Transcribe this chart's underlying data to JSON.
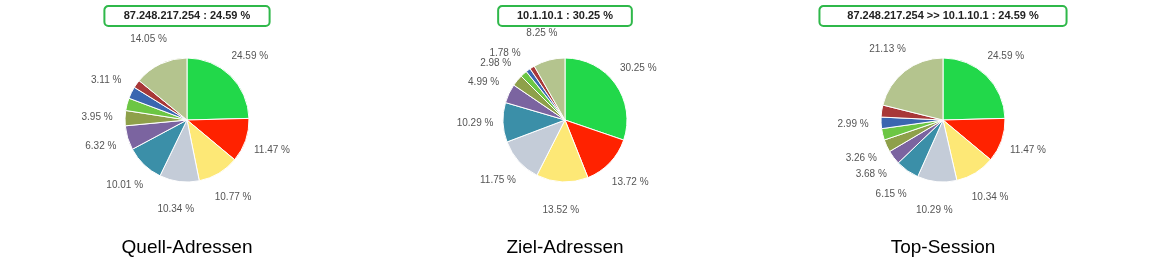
{
  "chart_data": [
    {
      "type": "pie",
      "title": "Quell-Adressen",
      "annotations": [
        "87.248.217.254 : 24.59 %"
      ],
      "legend": false,
      "categories": [
        null,
        null,
        null,
        null,
        null,
        null,
        null,
        null,
        null,
        null,
        null
      ],
      "values": [
        24.59,
        11.47,
        10.77,
        10.34,
        10.01,
        6.32,
        3.95,
        3.26,
        3.11,
        2.13,
        14.05
      ],
      "value_labels": [
        "24.59 %",
        "11.47 %",
        "10.77 %",
        "10.34 %",
        "10.01 %",
        "6.32 %",
        "3.95 %",
        null,
        "3.11 %",
        null,
        "14.05 %"
      ],
      "colors": [
        "#22d84a",
        "#ff2200",
        "#fde876",
        "#c4ccd8",
        "#3b8fa8",
        "#7b64a0",
        "#8ea04a",
        "#6cc644",
        "#3a66b0",
        "#a83838",
        "#b4c48e"
      ]
    },
    {
      "type": "pie",
      "title": "Ziel-Adressen",
      "annotations": [
        "10.1.10.1 : 30.25 %"
      ],
      "legend": false,
      "categories": [
        null,
        null,
        null,
        null,
        null,
        null,
        null,
        null,
        null,
        null,
        null
      ],
      "values": [
        30.25,
        13.72,
        13.52,
        11.75,
        10.29,
        4.99,
        2.98,
        1.78,
        1.2,
        1.27,
        8.25
      ],
      "value_labels": [
        "30.25 %",
        "13.72 %",
        "13.52 %",
        "11.75 %",
        "10.29 %",
        "4.99 %",
        "2.98 %",
        "1.78 %",
        null,
        null,
        "8.25 %"
      ],
      "colors": [
        "#22d84a",
        "#ff2200",
        "#fde876",
        "#c4ccd8",
        "#3b8fa8",
        "#7b64a0",
        "#8ea04a",
        "#6cc644",
        "#3a66b0",
        "#a83838",
        "#b4c48e"
      ]
    },
    {
      "type": "pie",
      "title": "Top-Session",
      "annotations": [
        "87.248.217.254 >> 10.1.10.1 : 24.59 %"
      ],
      "legend": false,
      "categories": [
        null,
        null,
        null,
        null,
        null,
        null,
        null,
        null,
        null,
        null,
        null
      ],
      "values": [
        24.59,
        11.47,
        10.34,
        10.29,
        6.15,
        3.68,
        3.26,
        2.99,
        2.99,
        3.11,
        21.13
      ],
      "value_labels": [
        "24.59 %",
        "11.47 %",
        "10.34 %",
        "10.29 %",
        "6.15 %",
        "3.68 %",
        "3.26 %",
        null,
        "2.99 %",
        null,
        "21.13 %"
      ],
      "colors": [
        "#22d84a",
        "#ff2200",
        "#fde876",
        "#c4ccd8",
        "#3b8fa8",
        "#7b64a0",
        "#8ea04a",
        "#6cc644",
        "#3a66b0",
        "#a83838",
        "#b4c48e"
      ]
    }
  ]
}
